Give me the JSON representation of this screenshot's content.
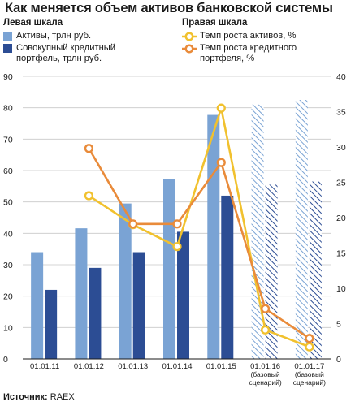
{
  "title": "Как меняется объем активов банковской системы",
  "legend": {
    "left_header": "Левая шкала",
    "right_header": "Правая шкала",
    "items": [
      {
        "label": "Активы, трлн руб.",
        "color": "#7aa3d4",
        "icon": "swatch"
      },
      {
        "label": "Совокупный кредитный портфель, трлн руб.",
        "color": "#2c4d94",
        "icon": "swatch"
      },
      {
        "label": "Темп роста активов, %",
        "color": "#f1c12e",
        "icon": "line-circle"
      },
      {
        "label": "Темп роста кредитного портфеля, %",
        "color": "#e98b3a",
        "icon": "line-circle"
      }
    ]
  },
  "source": {
    "prefix": "Источник:",
    "value": "RAEX"
  },
  "chart_data": {
    "type": "bar",
    "categories": [
      [
        "01.01.11"
      ],
      [
        "01.01.12"
      ],
      [
        "01.01.13"
      ],
      [
        "01.01.14"
      ],
      [
        "01.01.15"
      ],
      [
        "01.01.16",
        "(базовый",
        "сценарий)"
      ],
      [
        "01.01.17",
        "(базовый",
        "сценарий)"
      ]
    ],
    "forecast_from_index": 5,
    "left_axis": {
      "ylim": [
        0,
        90
      ],
      "ticks": [
        0,
        10,
        20,
        30,
        40,
        50,
        60,
        70,
        80,
        90
      ]
    },
    "right_axis": {
      "ylim": [
        0,
        40
      ],
      "ticks": [
        0,
        5,
        10,
        15,
        20,
        25,
        30,
        35,
        40
      ]
    },
    "bar_series": [
      {
        "name": "Активы, трлн руб.",
        "color": "#7aa3d4",
        "values": [
          34,
          41.6,
          49.5,
          57.4,
          77.7,
          81,
          82.5
        ]
      },
      {
        "name": "Совокупный кредитный портфель, трлн руб.",
        "color": "#2c4d94",
        "values": [
          22,
          29,
          34,
          40.5,
          52,
          55.5,
          56.5
        ]
      }
    ],
    "line_series": [
      {
        "name": "Темп роста активов, %",
        "color": "#f1c12e",
        "values": [
          null,
          23.1,
          19.0,
          15.9,
          35.5,
          4.1,
          1.7
        ]
      },
      {
        "name": "Темп роста кредитного портфеля, %",
        "color": "#e98b3a",
        "values": [
          null,
          29.8,
          19.1,
          19.1,
          27.8,
          7.1,
          2.9
        ]
      }
    ],
    "grid": true,
    "legend_position": "top"
  }
}
